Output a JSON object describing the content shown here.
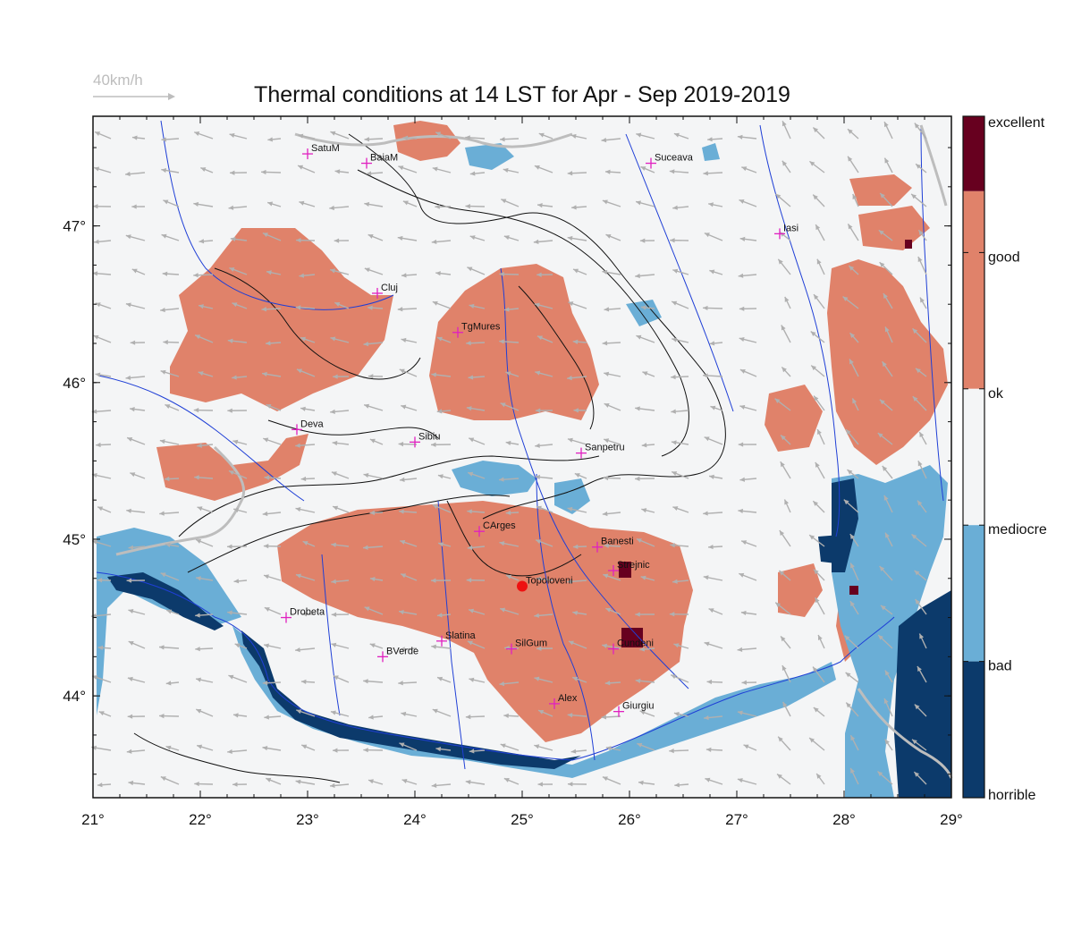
{
  "title": "Thermal conditions at 14 LST for Apr - Sep  2019-2019",
  "wind_reference": {
    "label": "40km/h",
    "color": "#bdbdbd"
  },
  "map": {
    "lon_range": [
      21,
      29
    ],
    "lat_range": [
      43.35,
      47.7
    ],
    "lon_ticks": [
      "21°",
      "22°",
      "23°",
      "24°",
      "25°",
      "26°",
      "27°",
      "28°",
      "29°"
    ],
    "lat_ticks": [
      "44°",
      "45°",
      "46°",
      "47°"
    ],
    "background_class": "ok"
  },
  "legend": {
    "classes": [
      {
        "label": "excellent",
        "color": "#67001f"
      },
      {
        "label": "good",
        "color": "#e0826a"
      },
      {
        "label": "ok",
        "color": "#f4f5f6"
      },
      {
        "label": "mediocre",
        "color": "#6aaed6"
      },
      {
        "label": "bad",
        "color": "#0c3a6b"
      },
      {
        "label": "horrible",
        "color": "#0c3a6b"
      }
    ]
  },
  "cities": [
    {
      "name": "SatuM",
      "lon": 23.0,
      "lat": 47.46
    },
    {
      "name": "BaiaM",
      "lon": 23.55,
      "lat": 47.4
    },
    {
      "name": "Suceava",
      "lon": 26.2,
      "lat": 47.4
    },
    {
      "name": "Iasi",
      "lon": 27.4,
      "lat": 46.95
    },
    {
      "name": "Cluj",
      "lon": 23.65,
      "lat": 46.57
    },
    {
      "name": "TgMures",
      "lon": 24.4,
      "lat": 46.32
    },
    {
      "name": "Deva",
      "lon": 22.9,
      "lat": 45.7
    },
    {
      "name": "Sibiu",
      "lon": 24.0,
      "lat": 45.62
    },
    {
      "name": "Sanpetru",
      "lon": 25.55,
      "lat": 45.55
    },
    {
      "name": "CArges",
      "lon": 24.6,
      "lat": 45.05
    },
    {
      "name": "Banesti",
      "lon": 25.7,
      "lat": 44.95
    },
    {
      "name": "Strejnic",
      "lon": 25.85,
      "lat": 44.8
    },
    {
      "name": "Topoloveni",
      "lon": 25.0,
      "lat": 44.7,
      "highlight": true
    },
    {
      "name": "Drobeta",
      "lon": 22.8,
      "lat": 44.5
    },
    {
      "name": "Slatina",
      "lon": 24.25,
      "lat": 44.35
    },
    {
      "name": "SilGum",
      "lon": 24.9,
      "lat": 44.3
    },
    {
      "name": "Cundeni",
      "lon": 25.85,
      "lat": 44.3
    },
    {
      "name": "BVerde",
      "lon": 23.7,
      "lat": 44.25
    },
    {
      "name": "Alex",
      "lon": 25.3,
      "lat": 43.95
    },
    {
      "name": "Giurgiu",
      "lon": 25.9,
      "lat": 43.9
    }
  ]
}
